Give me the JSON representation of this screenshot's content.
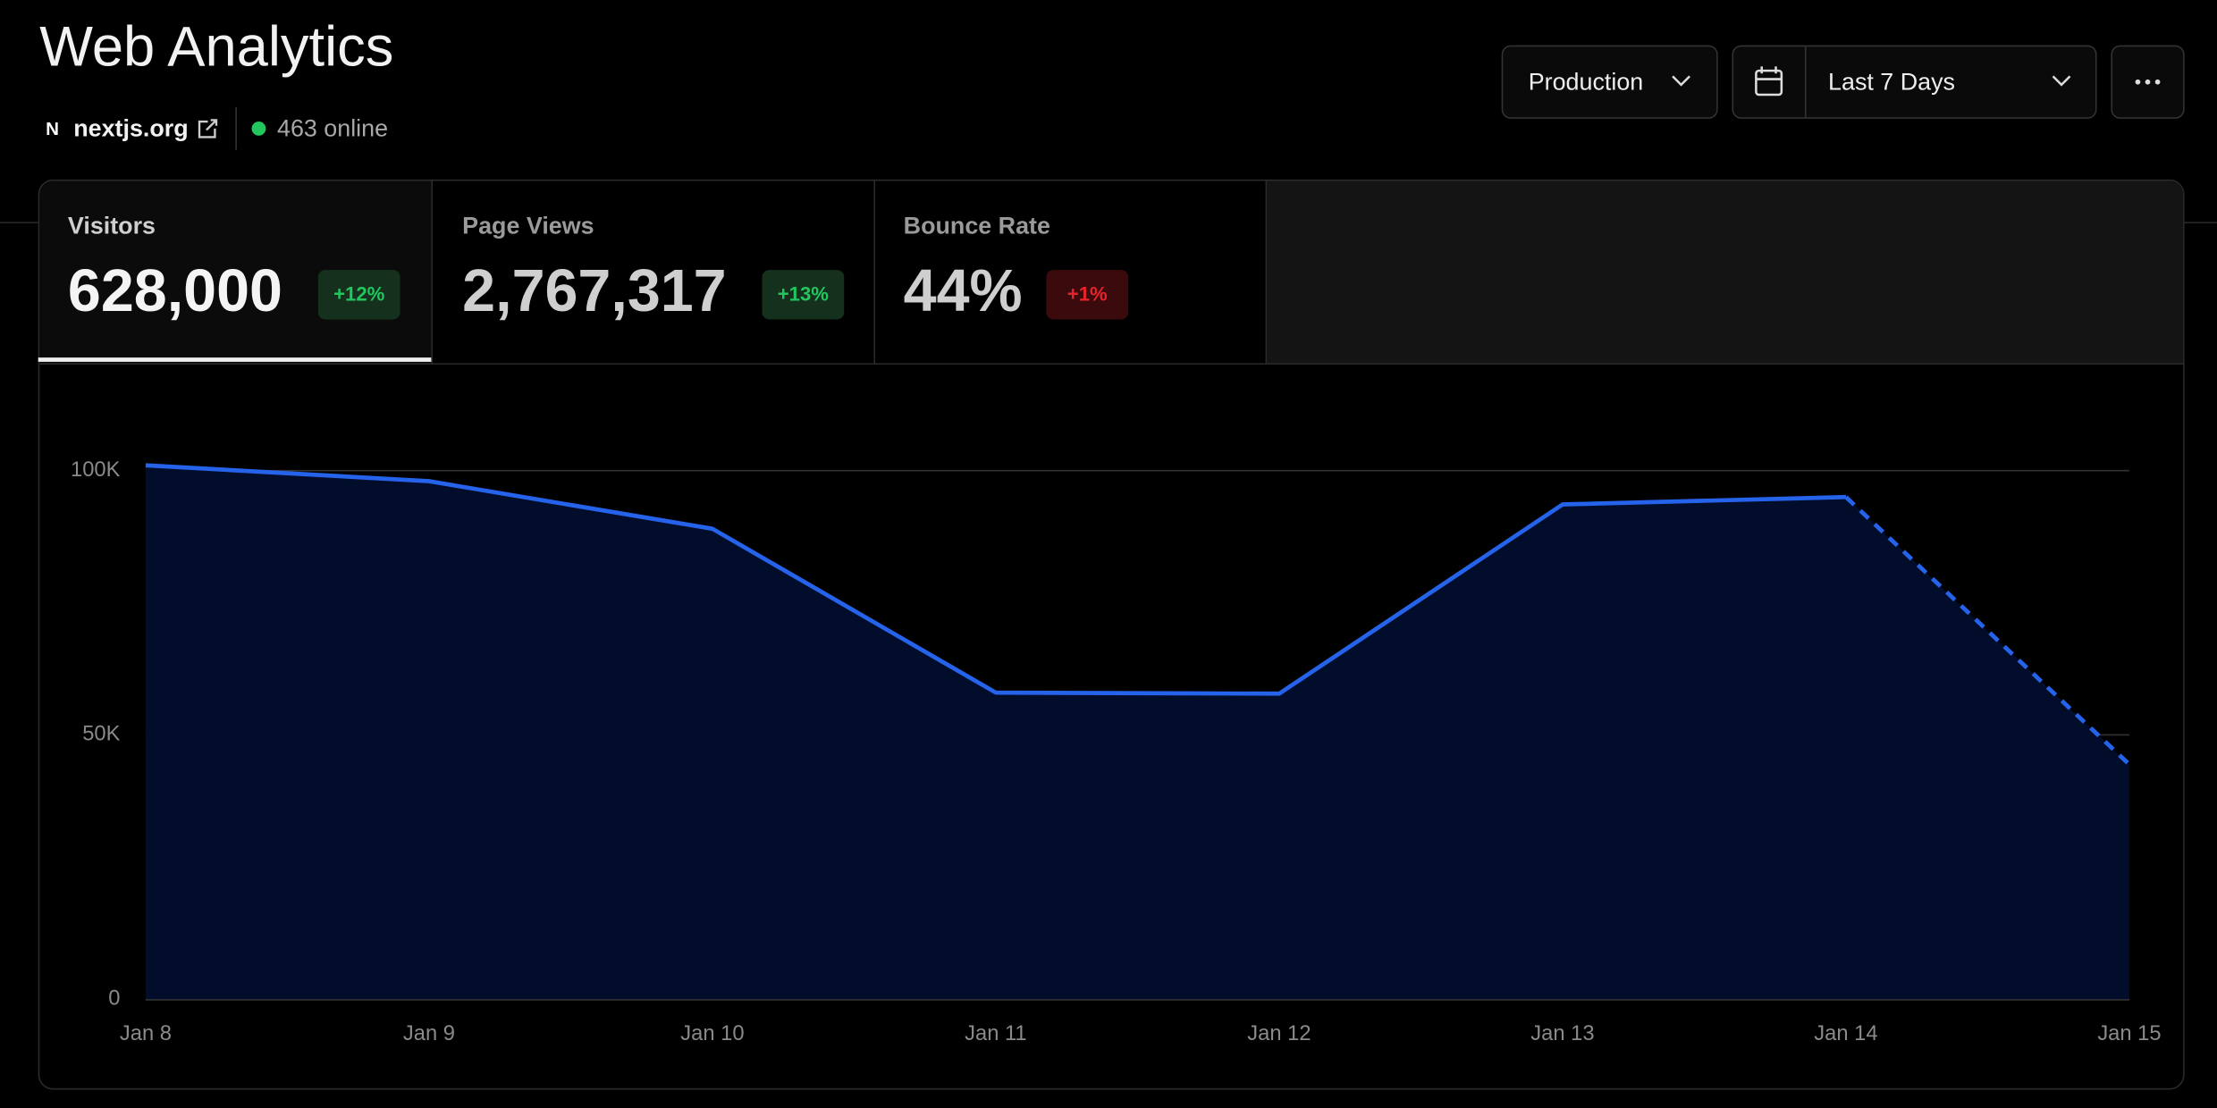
{
  "header": {
    "title": "Web Analytics",
    "site": "nextjs.org",
    "online": "463 online"
  },
  "filters": {
    "environment": "Production",
    "range": "Last 7 Days"
  },
  "metrics": [
    {
      "label": "Visitors",
      "value": "628,000",
      "change": "+12%"
    },
    {
      "label": "Page Views",
      "value": "2,767,317",
      "change": "+13%"
    },
    {
      "label": "Bounce Rate",
      "value": "44%",
      "change": "+1%"
    }
  ],
  "chart_data": {
    "type": "area",
    "categories": [
      "Jan 8",
      "Jan 9",
      "Jan 10",
      "Jan 11",
      "Jan 12",
      "Jan 13",
      "Jan 14",
      "Jan 15"
    ],
    "values": [
      101000,
      98000,
      89000,
      58000,
      57800,
      93600,
      95000,
      44400
    ],
    "color": "#2563eb",
    "fill": "#020c2b",
    "dashed_last_segment": true,
    "ylim": [
      0,
      110000
    ],
    "yticks": [
      0,
      {
        "value": 50000,
        "label": "50K"
      },
      {
        "value": 100000,
        "label": "100K"
      }
    ],
    "grid": true
  }
}
